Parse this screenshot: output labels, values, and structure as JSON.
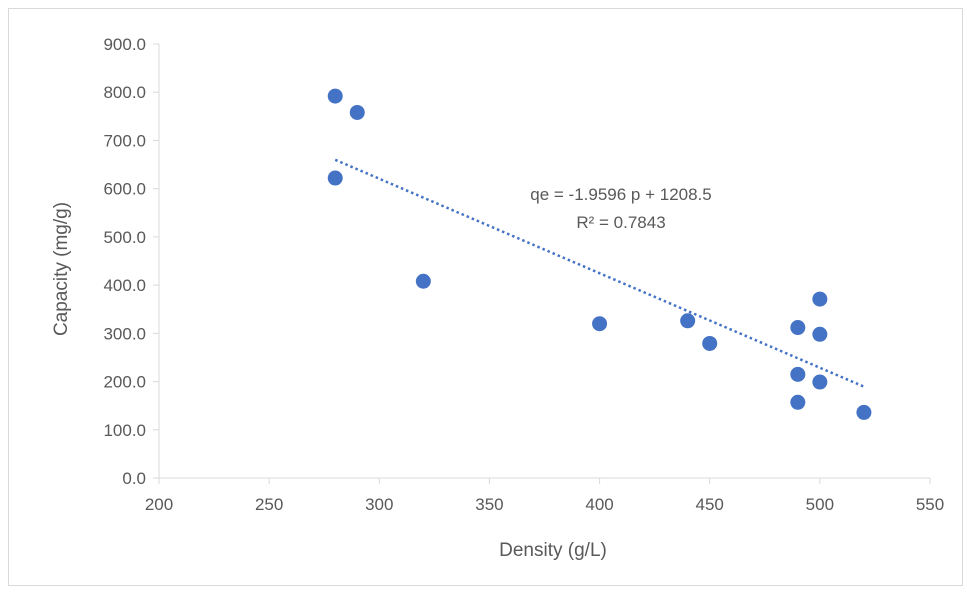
{
  "chart_data": {
    "type": "scatter",
    "title": "",
    "xlabel": "Density (g/L)",
    "ylabel": "Capacity (mg/g)",
    "xlim": [
      200,
      550
    ],
    "ylim": [
      0,
      900
    ],
    "x_ticks": [
      "200",
      "250",
      "300",
      "350",
      "400",
      "450",
      "500",
      "550"
    ],
    "y_ticks": [
      "0.0",
      "100.0",
      "200.0",
      "300.0",
      "400.0",
      "500.0",
      "600.0",
      "700.0",
      "800.0",
      "900.0"
    ],
    "grid": false,
    "legend": "none",
    "series": [
      {
        "color": "#4472c4",
        "points": [
          {
            "x": 280,
            "y": 792
          },
          {
            "x": 290,
            "y": 758
          },
          {
            "x": 280,
            "y": 622
          },
          {
            "x": 320,
            "y": 408
          },
          {
            "x": 400,
            "y": 320
          },
          {
            "x": 440,
            "y": 326
          },
          {
            "x": 450,
            "y": 279
          },
          {
            "x": 490,
            "y": 312
          },
          {
            "x": 500,
            "y": 371
          },
          {
            "x": 500,
            "y": 298
          },
          {
            "x": 490,
            "y": 215
          },
          {
            "x": 500,
            "y": 199
          },
          {
            "x": 490,
            "y": 157
          },
          {
            "x": 520,
            "y": 136
          }
        ]
      }
    ],
    "trendline": {
      "type": "linear",
      "slope": -1.9596,
      "intercept": 1208.5,
      "x_range": [
        280,
        520
      ],
      "style": "dotted",
      "color": "#4472c4",
      "equation_label": "qe = -1.9596 p + 1208.5",
      "r2_label": "R² = 0.7843"
    }
  }
}
